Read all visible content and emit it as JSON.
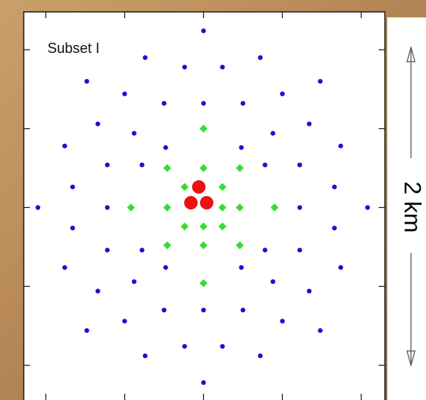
{
  "chart_data": {
    "type": "scatter",
    "title": "Subset I",
    "annotation": "2 km",
    "xlim": [
      -1.14,
      1.15
    ],
    "ylim": [
      -1.22,
      1.24
    ],
    "xticks": [
      -1,
      -0.5,
      0,
      0.5,
      1
    ],
    "yticks": [
      -1,
      -0.5,
      0,
      0.5,
      1
    ],
    "series": [
      {
        "color": "#1414d2",
        "marker": "circle",
        "size": 6,
        "x": [
          0,
          -0.37,
          0.36,
          -0.74,
          -0.12,
          0.12,
          0.74,
          -0.5,
          0.5,
          -0.25,
          0,
          0.25,
          -0.67,
          0.67,
          -0.44,
          0.44,
          -0.88,
          0.87,
          -0.24,
          0.24,
          -0.61,
          0.61,
          -0.39,
          0.39,
          -0.83,
          0.83,
          -1.05,
          -0.61,
          0.61,
          1.04,
          -0.83,
          0.83,
          -0.61,
          -0.39,
          0.39,
          0.61,
          -0.88,
          0.87,
          -0.44,
          0.44,
          -0.24,
          0.24,
          -0.67,
          0.67,
          -0.25,
          0,
          0.25,
          -0.5,
          0.5,
          -0.74,
          0.74,
          -0.12,
          0.12,
          -0.37,
          0.36,
          0
        ],
        "values": [
          1.12,
          0.95,
          0.95,
          0.8,
          0.89,
          0.89,
          0.8,
          0.72,
          0.72,
          0.66,
          0.66,
          0.66,
          0.53,
          0.53,
          0.47,
          0.47,
          0.39,
          0.39,
          0.38,
          0.38,
          0.27,
          0.27,
          0.27,
          0.27,
          0.13,
          0.13,
          0,
          0,
          0,
          0,
          -0.13,
          -0.13,
          -0.27,
          -0.27,
          -0.27,
          -0.27,
          -0.38,
          -0.38,
          -0.47,
          -0.47,
          -0.38,
          -0.38,
          -0.53,
          -0.53,
          -0.65,
          -0.65,
          -0.65,
          -0.72,
          -0.72,
          -0.78,
          -0.78,
          -0.88,
          -0.88,
          -0.94,
          -0.94,
          -1.11
        ]
      },
      {
        "color": "#33dd33",
        "marker": "diamond",
        "size": 10,
        "x": [
          0,
          -0.23,
          0,
          0.23,
          -0.12,
          0.12,
          -0.46,
          -0.23,
          0.12,
          0.23,
          0.45,
          -0.12,
          0,
          0.12,
          -0.23,
          0,
          0.23,
          0
        ],
        "values": [
          0.5,
          0.25,
          0.25,
          0.25,
          0.13,
          0.13,
          0,
          0,
          0,
          0,
          0,
          -0.12,
          -0.12,
          -0.12,
          -0.24,
          -0.24,
          -0.24,
          -0.48
        ]
      },
      {
        "color": "#ee1111",
        "marker": "circle",
        "size": 17,
        "x": [
          -0.03,
          -0.08,
          0.02
        ],
        "values": [
          0.13,
          0.03,
          0.03
        ]
      }
    ]
  }
}
